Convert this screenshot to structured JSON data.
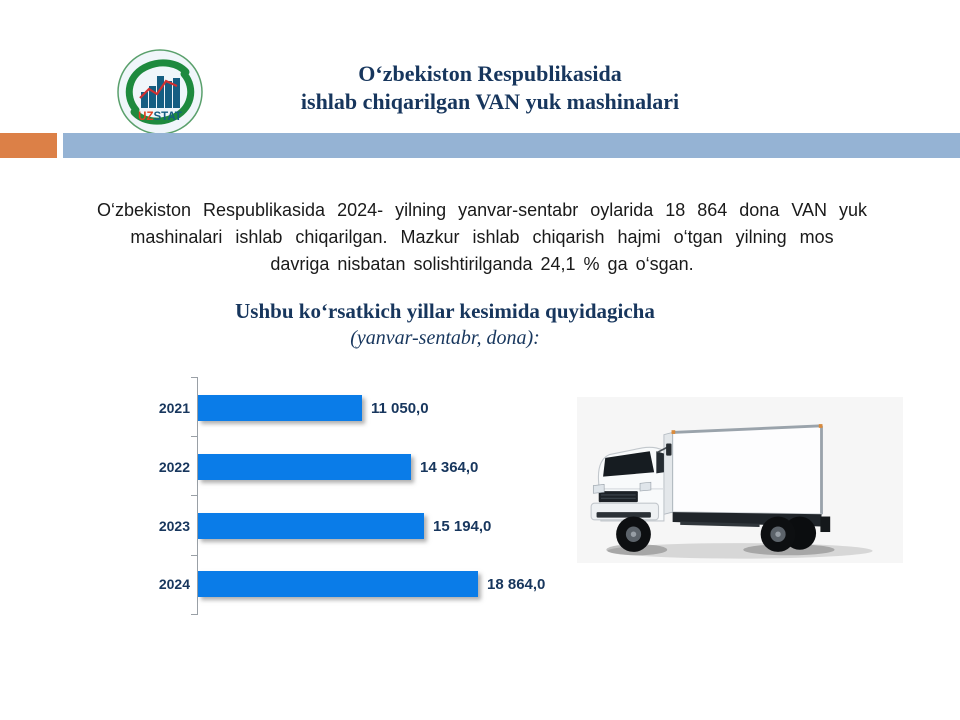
{
  "slide": {
    "title_line1": "O‘zbekiston Respublikasida",
    "title_line2": "ishlab chiqarilgan VAN yuk mashinalari",
    "intro_lines": [
      "O‘zbekiston Respublikasida 2024- yilning yanvar-sentabr oylarida 18 864 dona  VAN  yuk",
      "mashinalari ishlab chiqarilgan. Mazkur ishlab chiqarish hajmi o‘tgan yilning mos",
      "davriga nisbatan solishtirilganda 24,1 % ga o‘sgan."
    ],
    "section_heading": "Ushbu ko‘rsatkich yillar kesimida quyidagicha",
    "section_subheading": "(yanvar-sentabr, dona):"
  },
  "logo": {
    "uz": "UZ",
    "stat": "STAT"
  },
  "chart_data": {
    "type": "bar",
    "orientation": "horizontal",
    "title": "Ushbu ko‘rsatkich yillar kesimida quyidagicha (yanvar-sentabr, dona)",
    "categories": [
      "2021",
      "2022",
      "2023",
      "2024"
    ],
    "values": [
      11050,
      14364,
      15194,
      18864
    ],
    "value_labels": [
      "11 050,0",
      "14 364,0",
      "15 194,0",
      "18 864,0"
    ],
    "xlim": [
      0,
      19500
    ],
    "grid": false,
    "legend": "none",
    "bar_color": "#0a7ce8",
    "label_color": "#17365d"
  },
  "colors": {
    "title_navy": "#17365d",
    "band_blue": "#95b3d4",
    "band_orange": "#dc8047",
    "bar_blue": "#0a7ce8"
  },
  "images": {
    "truck": "white-box-van-truck"
  }
}
